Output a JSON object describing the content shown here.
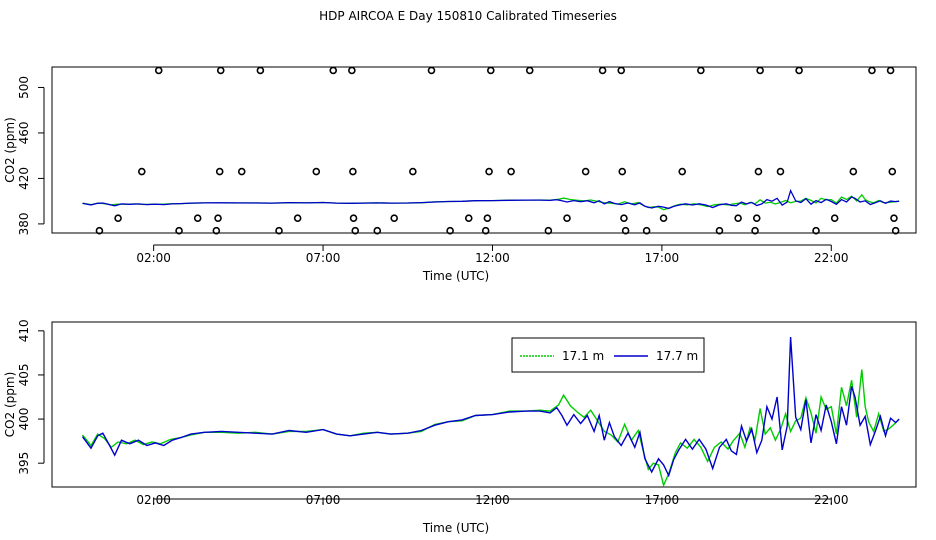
{
  "title": "HDP AIRCOA E  Day 150810  Calibrated Timeseries",
  "colors": {
    "series_17_1": "#00cc00",
    "series_17_7": "#0000cc",
    "axis": "#000000"
  },
  "chart_data": [
    {
      "type": "line",
      "panel": "top",
      "xlabel": "Time (UTC)",
      "ylabel": "CO2 (ppm)",
      "xlim": [
        -1,
        24.5
      ],
      "ylim": [
        372,
        518
      ],
      "xticks": [
        2,
        7,
        12,
        17,
        22
      ],
      "xtick_labels": [
        "02:00",
        "07:00",
        "12:00",
        "17:00",
        "22:00"
      ],
      "yticks": [
        380,
        420,
        460,
        500
      ],
      "ytick_labels": [
        "380",
        "420",
        "460",
        "500"
      ],
      "scatter_type": "calibration points (open circles)",
      "points": [
        {
          "x": 0.4,
          "y": 374
        },
        {
          "x": 0.95,
          "y": 385
        },
        {
          "x": 1.65,
          "y": 426
        },
        {
          "x": 2.15,
          "y": 515
        },
        {
          "x": 2.75,
          "y": 374
        },
        {
          "x": 3.3,
          "y": 385
        },
        {
          "x": 3.85,
          "y": 374
        },
        {
          "x": 3.9,
          "y": 385
        },
        {
          "x": 3.95,
          "y": 426
        },
        {
          "x": 3.98,
          "y": 515
        },
        {
          "x": 4.6,
          "y": 426
        },
        {
          "x": 5.15,
          "y": 515
        },
        {
          "x": 5.7,
          "y": 374
        },
        {
          "x": 6.25,
          "y": 385
        },
        {
          "x": 6.8,
          "y": 426
        },
        {
          "x": 7.3,
          "y": 515
        },
        {
          "x": 7.85,
          "y": 515
        },
        {
          "x": 7.88,
          "y": 426
        },
        {
          "x": 7.9,
          "y": 385
        },
        {
          "x": 7.95,
          "y": 374
        },
        {
          "x": 8.6,
          "y": 374
        },
        {
          "x": 9.1,
          "y": 385
        },
        {
          "x": 9.65,
          "y": 426
        },
        {
          "x": 10.2,
          "y": 515
        },
        {
          "x": 10.75,
          "y": 374
        },
        {
          "x": 11.3,
          "y": 385
        },
        {
          "x": 11.8,
          "y": 374
        },
        {
          "x": 11.85,
          "y": 385
        },
        {
          "x": 11.9,
          "y": 426
        },
        {
          "x": 11.95,
          "y": 515
        },
        {
          "x": 12.55,
          "y": 426
        },
        {
          "x": 13.1,
          "y": 515
        },
        {
          "x": 13.65,
          "y": 374
        },
        {
          "x": 14.2,
          "y": 385
        },
        {
          "x": 14.75,
          "y": 426
        },
        {
          "x": 15.25,
          "y": 515
        },
        {
          "x": 15.8,
          "y": 515
        },
        {
          "x": 15.83,
          "y": 426
        },
        {
          "x": 15.88,
          "y": 385
        },
        {
          "x": 15.93,
          "y": 374
        },
        {
          "x": 16.55,
          "y": 374
        },
        {
          "x": 17.05,
          "y": 385
        },
        {
          "x": 17.6,
          "y": 426
        },
        {
          "x": 18.15,
          "y": 515
        },
        {
          "x": 18.7,
          "y": 374
        },
        {
          "x": 19.25,
          "y": 385
        },
        {
          "x": 19.75,
          "y": 374
        },
        {
          "x": 19.8,
          "y": 385
        },
        {
          "x": 19.85,
          "y": 426
        },
        {
          "x": 19.9,
          "y": 515
        },
        {
          "x": 20.5,
          "y": 426
        },
        {
          "x": 21.05,
          "y": 515
        },
        {
          "x": 21.55,
          "y": 374
        },
        {
          "x": 22.1,
          "y": 385
        },
        {
          "x": 22.65,
          "y": 426
        },
        {
          "x": 23.2,
          "y": 515
        },
        {
          "x": 23.75,
          "y": 515
        },
        {
          "x": 23.8,
          "y": 426
        },
        {
          "x": 23.85,
          "y": 385
        },
        {
          "x": 23.9,
          "y": 374
        }
      ]
    },
    {
      "type": "line",
      "panel": "bottom",
      "xlabel": "Time (UTC)",
      "ylabel": "CO2 (ppm)",
      "xlim": [
        -1,
        24.5
      ],
      "ylim": [
        392.3,
        411
      ],
      "xticks": [
        2,
        7,
        12,
        17,
        22
      ],
      "xtick_labels": [
        "02:00",
        "07:00",
        "12:00",
        "17:00",
        "22:00"
      ],
      "yticks": [
        395,
        400,
        405,
        410
      ],
      "ytick_labels": [
        "395",
        "400",
        "405",
        "410"
      ],
      "legend_position": "top-right",
      "series": [
        {
          "name": "17.1 m",
          "color": "#00cc00",
          "points": [
            [
              -0.1,
              398.2
            ],
            [
              0.15,
              397.0
            ],
            [
              0.35,
              398.3
            ],
            [
              0.55,
              397.8
            ],
            [
              0.75,
              396.8
            ],
            [
              0.95,
              397.4
            ],
            [
              1.2,
              397.2
            ],
            [
              1.45,
              397.6
            ],
            [
              1.7,
              397.1
            ],
            [
              1.95,
              397.4
            ],
            [
              2.2,
              397.2
            ],
            [
              2.5,
              397.7
            ],
            [
              2.8,
              397.9
            ],
            [
              3.1,
              398.2
            ],
            [
              3.5,
              398.5
            ],
            [
              4.0,
              398.5
            ],
            [
              4.5,
              398.4
            ],
            [
              5.0,
              398.5
            ],
            [
              5.5,
              398.3
            ],
            [
              6.0,
              398.6
            ],
            [
              6.5,
              398.6
            ],
            [
              7.0,
              398.8
            ],
            [
              7.4,
              398.3
            ],
            [
              7.8,
              398.1
            ],
            [
              8.2,
              398.4
            ],
            [
              8.6,
              398.5
            ],
            [
              9.0,
              398.3
            ],
            [
              9.5,
              398.4
            ],
            [
              9.9,
              398.6
            ],
            [
              10.3,
              399.4
            ],
            [
              10.7,
              399.7
            ],
            [
              11.1,
              399.8
            ],
            [
              11.5,
              400.4
            ],
            [
              12.0,
              400.5
            ],
            [
              12.5,
              400.9
            ],
            [
              13.0,
              400.9
            ],
            [
              13.4,
              401.0
            ],
            [
              13.7,
              400.9
            ],
            [
              13.95,
              401.6
            ],
            [
              14.1,
              402.7
            ],
            [
              14.3,
              401.5
            ],
            [
              14.5,
              400.8
            ],
            [
              14.7,
              400.2
            ],
            [
              14.9,
              401.0
            ],
            [
              15.1,
              399.8
            ],
            [
              15.3,
              398.6
            ],
            [
              15.5,
              398.2
            ],
            [
              15.7,
              397.4
            ],
            [
              15.9,
              399.4
            ],
            [
              16.1,
              397.6
            ],
            [
              16.3,
              398.7
            ],
            [
              16.45,
              396.4
            ],
            [
              16.6,
              394.3
            ],
            [
              16.75,
              395.0
            ],
            [
              16.9,
              394.8
            ],
            [
              17.05,
              392.5
            ],
            [
              17.2,
              393.8
            ],
            [
              17.4,
              396.2
            ],
            [
              17.55,
              397.3
            ],
            [
              17.75,
              396.7
            ],
            [
              17.95,
              397.7
            ],
            [
              18.15,
              396.8
            ],
            [
              18.35,
              395.2
            ],
            [
              18.55,
              396.8
            ],
            [
              18.75,
              397.4
            ],
            [
              18.95,
              396.6
            ],
            [
              19.1,
              397.5
            ],
            [
              19.3,
              398.4
            ],
            [
              19.45,
              396.8
            ],
            [
              19.6,
              399.0
            ],
            [
              19.75,
              397.7
            ],
            [
              19.9,
              401.2
            ],
            [
              20.05,
              398.3
            ],
            [
              20.2,
              399.0
            ],
            [
              20.35,
              397.6
            ],
            [
              20.5,
              398.8
            ],
            [
              20.65,
              400.6
            ],
            [
              20.8,
              398.6
            ],
            [
              20.95,
              399.8
            ],
            [
              21.1,
              400.1
            ],
            [
              21.25,
              402.4
            ],
            [
              21.4,
              400.7
            ],
            [
              21.55,
              398.4
            ],
            [
              21.7,
              402.5
            ],
            [
              21.85,
              401.1
            ],
            [
              22.0,
              401.4
            ],
            [
              22.15,
              398.3
            ],
            [
              22.3,
              403.6
            ],
            [
              22.45,
              401.5
            ],
            [
              22.6,
              404.4
            ],
            [
              22.75,
              400.2
            ],
            [
              22.9,
              405.6
            ],
            [
              23.0,
              401.4
            ],
            [
              23.1,
              399.7
            ],
            [
              23.25,
              398.6
            ],
            [
              23.4,
              400.6
            ],
            [
              23.55,
              398.6
            ],
            [
              23.7,
              398.9
            ],
            [
              23.85,
              399.4
            ],
            [
              24.0,
              400.0
            ]
          ]
        },
        {
          "name": "17.7 m",
          "color": "#0000cc",
          "points": [
            [
              -0.1,
              398.0
            ],
            [
              0.15,
              396.7
            ],
            [
              0.35,
              398.1
            ],
            [
              0.5,
              398.4
            ],
            [
              0.7,
              397.0
            ],
            [
              0.85,
              395.9
            ],
            [
              1.05,
              397.6
            ],
            [
              1.3,
              397.2
            ],
            [
              1.55,
              397.6
            ],
            [
              1.8,
              397.0
            ],
            [
              2.05,
              397.3
            ],
            [
              2.3,
              397.0
            ],
            [
              2.55,
              397.6
            ],
            [
              2.8,
              397.9
            ],
            [
              3.1,
              398.3
            ],
            [
              3.5,
              398.5
            ],
            [
              4.0,
              398.6
            ],
            [
              4.5,
              398.5
            ],
            [
              5.0,
              398.4
            ],
            [
              5.5,
              398.3
            ],
            [
              6.0,
              398.7
            ],
            [
              6.5,
              398.5
            ],
            [
              7.0,
              398.8
            ],
            [
              7.4,
              398.3
            ],
            [
              7.8,
              398.1
            ],
            [
              8.2,
              398.3
            ],
            [
              8.6,
              398.5
            ],
            [
              9.0,
              398.3
            ],
            [
              9.5,
              398.4
            ],
            [
              9.9,
              398.7
            ],
            [
              10.3,
              399.3
            ],
            [
              10.7,
              399.7
            ],
            [
              11.1,
              399.9
            ],
            [
              11.5,
              400.4
            ],
            [
              12.0,
              400.5
            ],
            [
              12.5,
              400.8
            ],
            [
              13.0,
              400.9
            ],
            [
              13.4,
              400.9
            ],
            [
              13.7,
              400.7
            ],
            [
              13.9,
              401.3
            ],
            [
              14.05,
              400.4
            ],
            [
              14.2,
              399.3
            ],
            [
              14.4,
              400.5
            ],
            [
              14.6,
              399.5
            ],
            [
              14.8,
              400.4
            ],
            [
              15.0,
              398.6
            ],
            [
              15.15,
              400.4
            ],
            [
              15.3,
              397.6
            ],
            [
              15.45,
              399.6
            ],
            [
              15.6,
              398.0
            ],
            [
              15.8,
              397.0
            ],
            [
              16.0,
              398.4
            ],
            [
              16.2,
              396.8
            ],
            [
              16.35,
              398.5
            ],
            [
              16.5,
              395.5
            ],
            [
              16.7,
              394.0
            ],
            [
              16.9,
              395.5
            ],
            [
              17.05,
              394.8
            ],
            [
              17.2,
              393.6
            ],
            [
              17.35,
              395.4
            ],
            [
              17.5,
              396.5
            ],
            [
              17.7,
              397.7
            ],
            [
              17.9,
              396.6
            ],
            [
              18.1,
              397.7
            ],
            [
              18.3,
              396.6
            ],
            [
              18.5,
              394.4
            ],
            [
              18.7,
              396.8
            ],
            [
              18.9,
              397.7
            ],
            [
              19.05,
              396.4
            ],
            [
              19.2,
              396.0
            ],
            [
              19.35,
              399.2
            ],
            [
              19.5,
              397.5
            ],
            [
              19.65,
              398.9
            ],
            [
              19.8,
              396.2
            ],
            [
              19.95,
              397.6
            ],
            [
              20.1,
              401.4
            ],
            [
              20.25,
              400.0
            ],
            [
              20.4,
              402.5
            ],
            [
              20.55,
              396.5
            ],
            [
              20.7,
              399.2
            ],
            [
              20.8,
              409.3
            ],
            [
              20.95,
              400.2
            ],
            [
              21.1,
              398.8
            ],
            [
              21.25,
              402.2
            ],
            [
              21.4,
              397.3
            ],
            [
              21.55,
              400.5
            ],
            [
              21.7,
              398.7
            ],
            [
              21.85,
              401.6
            ],
            [
              22.0,
              399.7
            ],
            [
              22.15,
              397.2
            ],
            [
              22.3,
              401.4
            ],
            [
              22.45,
              399.3
            ],
            [
              22.6,
              403.7
            ],
            [
              22.7,
              402.5
            ],
            [
              22.85,
              399.3
            ],
            [
              23.0,
              400.3
            ],
            [
              23.15,
              397.1
            ],
            [
              23.3,
              398.6
            ],
            [
              23.45,
              400.3
            ],
            [
              23.6,
              398.1
            ],
            [
              23.75,
              400.1
            ],
            [
              23.9,
              399.6
            ],
            [
              24.0,
              400.0
            ]
          ]
        }
      ]
    }
  ]
}
